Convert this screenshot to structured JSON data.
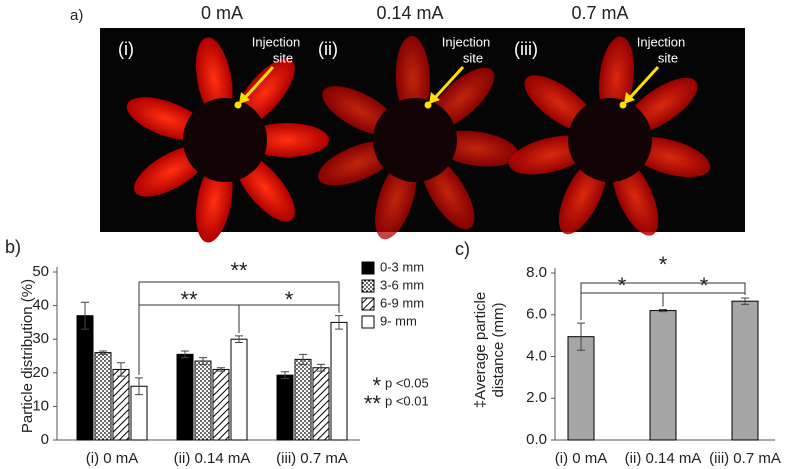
{
  "panel_a": {
    "label": "a)",
    "conditions": [
      "0 mA",
      "0.14 mA",
      "0.7 mA"
    ],
    "numerals": [
      "(i)",
      "(ii)",
      "(iii)"
    ],
    "injection": [
      "Injection",
      "site"
    ]
  },
  "chart_data": [
    {
      "type": "grouped_bar",
      "panel": "b)",
      "ylabel": "Particle distribution (%)",
      "categories": [
        "(i) 0 mA",
        "(ii) 0.14 mA",
        "(iii) 0.7 mA"
      ],
      "series": [
        {
          "name": "0-3 mm",
          "color": "#000000",
          "pattern": "solid",
          "values": [
            37,
            25.5,
            19.3
          ],
          "errors": [
            4,
            1,
            1
          ]
        },
        {
          "name": "3-6 mm",
          "color": "#ffffff",
          "pattern": "dots",
          "values": [
            26,
            23.5,
            24
          ],
          "errors": [
            0.5,
            1,
            1.5
          ]
        },
        {
          "name": "6-9 mm",
          "color": "#ffffff",
          "pattern": "hatch",
          "values": [
            21,
            21,
            21.5
          ],
          "errors": [
            2,
            0.5,
            1
          ]
        },
        {
          "name": "9-   mm",
          "color": "#ffffff",
          "pattern": "solid",
          "values": [
            16,
            30,
            35
          ],
          "errors": [
            2.5,
            1,
            2
          ]
        }
      ],
      "ylim": [
        0,
        50
      ],
      "yticks": [
        0,
        10,
        20,
        30,
        40,
        50
      ],
      "annotations": [
        "**",
        "**",
        "*"
      ],
      "significance": [
        {
          "mark": "*",
          "text": "p <0.05"
        },
        {
          "mark": "**",
          "text": "p <0.01"
        }
      ]
    },
    {
      "type": "bar",
      "panel": "c)",
      "ylabel": [
        "‡Average particle",
        "distance (mm)"
      ],
      "categories": [
        "(i) 0 mA",
        "(ii) 0.14 mA",
        "(iii) 0.7 mA"
      ],
      "values": [
        4.95,
        6.2,
        6.65
      ],
      "errors": [
        0.65,
        0.05,
        0.15
      ],
      "color": "#a6a6a6",
      "ylim": [
        0,
        8
      ],
      "yticks": [
        {
          "value": 0,
          "label": "0.0"
        },
        {
          "value": 2,
          "label": "2.0"
        },
        {
          "value": 4,
          "label": "4.0"
        },
        {
          "value": 6,
          "label": "6.0"
        },
        {
          "value": 8,
          "label": "8.0"
        }
      ],
      "annotations": [
        "*",
        "*",
        "*"
      ]
    }
  ]
}
